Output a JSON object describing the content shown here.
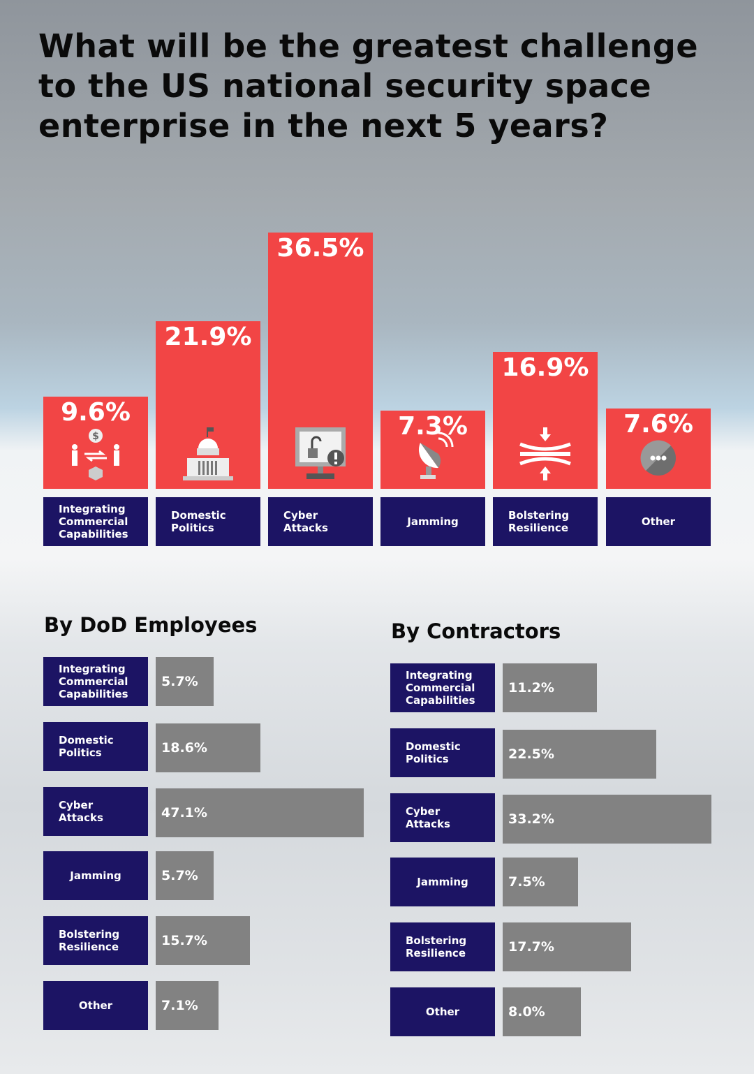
{
  "title": "What will be the greatest challenge to the US national security space enterprise in the next 5 years?",
  "colors": {
    "bar": "#f24545",
    "label_bg": "#1c1464",
    "sub_bar": "#828282"
  },
  "chart_data": [
    {
      "type": "bar",
      "title": "What will be the greatest challenge to the US national security space enterprise in the next 5 years?",
      "categories": [
        "Integrating Commercial Capabilities",
        "Domestic Politics",
        "Cyber Attacks",
        "Jamming",
        "Bolstering Resilience",
        "Other"
      ],
      "values": [
        9.6,
        21.9,
        36.5,
        7.3,
        16.9,
        7.6
      ],
      "labels": [
        "9.6%",
        "21.9%",
        "36.5%",
        "7.3%",
        "16.9%",
        "7.6%"
      ],
      "icons": [
        "commercial-exchange-icon",
        "capitol-building-icon",
        "unlocked-computer-alert-icon",
        "satellite-dish-icon",
        "compression-arrows-icon",
        "more-dots-icon"
      ]
    },
    {
      "type": "bar",
      "orientation": "horizontal",
      "title": "By DoD Employees",
      "categories": [
        "Integrating Commercial Capabilities",
        "Domestic Politics",
        "Cyber Attacks",
        "Jamming",
        "Bolstering Resilience",
        "Other"
      ],
      "values": [
        5.7,
        18.6,
        47.1,
        5.7,
        15.7,
        7.1
      ],
      "labels": [
        "5.7%",
        "18.6%",
        "47.1%",
        "5.7%",
        "15.7%",
        "7.1%"
      ]
    },
    {
      "type": "bar",
      "orientation": "horizontal",
      "title": "By Contractors",
      "categories": [
        "Integrating Commercial Capabilities",
        "Domestic Politics",
        "Cyber Attacks",
        "Jamming",
        "Bolstering Resilience",
        "Other"
      ],
      "values": [
        11.2,
        22.5,
        33.2,
        7.5,
        17.7,
        8.0
      ],
      "labels": [
        "11.2%",
        "22.5%",
        "33.2%",
        "7.5%",
        "17.7%",
        "8.0%"
      ]
    }
  ]
}
